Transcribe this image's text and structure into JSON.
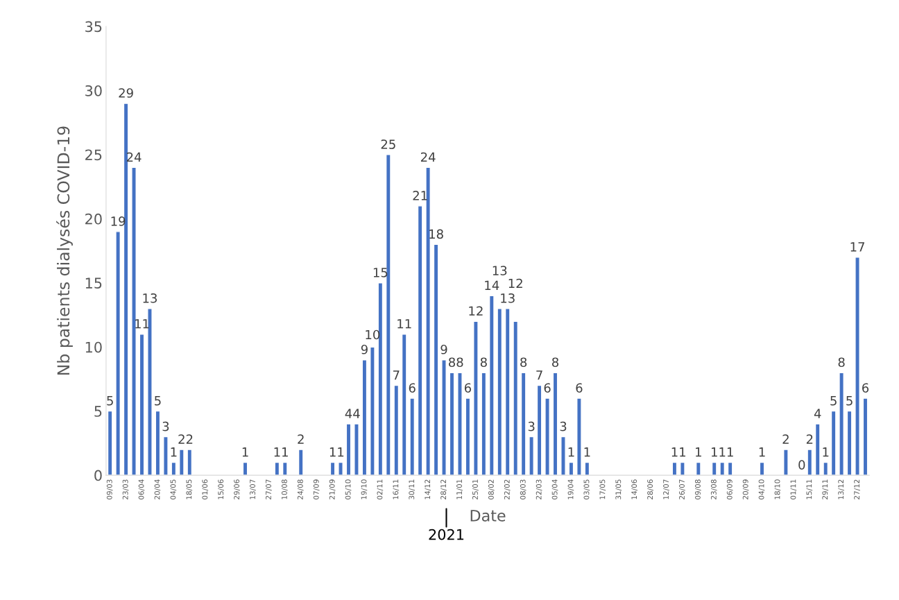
{
  "chart_data": {
    "type": "bar",
    "xlabel": "Date",
    "ylabel": "Nb patients dialysés COVID-19",
    "categories": [
      "09/03",
      null,
      "23/03",
      null,
      "06/04",
      null,
      "20/04",
      null,
      "04/05",
      null,
      "18/05",
      null,
      "01/06",
      null,
      "15/06",
      null,
      "29/06",
      null,
      "13/07",
      null,
      "27/07",
      null,
      "10/08",
      null,
      "24/08",
      null,
      "07/09",
      null,
      "21/09",
      null,
      "05/10",
      null,
      "19/10",
      null,
      "02/11",
      null,
      "16/11",
      null,
      "30/11",
      null,
      "14/12",
      null,
      "28/12",
      null,
      "11/01",
      null,
      "25/01",
      null,
      "08/02",
      null,
      "22/02",
      null,
      "08/03",
      null,
      "22/03",
      null,
      "05/04",
      null,
      "19/04",
      null,
      "03/05",
      null,
      "17/05",
      null,
      "31/05",
      null,
      "14/06",
      null,
      "28/06",
      null,
      "12/07",
      null,
      "26/07",
      null,
      "09/08",
      null,
      "23/08",
      null,
      "06/09",
      null,
      "20/09",
      null,
      "04/10",
      null,
      "18/10",
      null,
      "01/11",
      null,
      "15/11",
      null,
      "29/11",
      null,
      "13/12",
      null,
      "27/12",
      null
    ],
    "values": [
      5,
      19,
      29,
      24,
      11,
      13,
      5,
      3,
      1,
      2,
      2,
      0,
      0,
      0,
      0,
      0,
      0,
      1,
      0,
      0,
      0,
      1,
      1,
      0,
      2,
      0,
      0,
      0,
      1,
      1,
      4,
      4,
      9,
      10,
      15,
      25,
      7,
      11,
      6,
      21,
      24,
      18,
      9,
      8,
      8,
      6,
      12,
      8,
      14,
      13,
      13,
      12,
      8,
      3,
      7,
      6,
      8,
      3,
      1,
      6,
      1,
      0,
      0,
      0,
      0,
      0,
      0,
      0,
      0,
      0,
      0,
      1,
      1,
      0,
      1,
      0,
      1,
      1,
      1,
      0,
      0,
      0,
      1,
      0,
      0,
      2,
      0,
      0,
      2,
      4,
      1,
      5,
      8,
      5,
      17,
      6
    ],
    "value_labels": [
      "5",
      "19",
      "29",
      "24",
      "11",
      "13",
      "5",
      "3",
      "1",
      "2",
      "2",
      null,
      null,
      null,
      null,
      null,
      null,
      "1",
      null,
      null,
      null,
      "1",
      "1",
      null,
      "2",
      null,
      null,
      null,
      "1",
      "1",
      "4",
      "4",
      "9",
      "10",
      "15",
      "25",
      "7",
      "11",
      "6",
      "21",
      "24",
      "18",
      "9",
      "8",
      "8",
      "6",
      "12",
      "8",
      "14",
      "13",
      "13",
      "12",
      "8",
      "3",
      "7",
      "6",
      "8",
      "3",
      "1",
      "6",
      "1",
      null,
      null,
      null,
      null,
      null,
      null,
      null,
      null,
      null,
      null,
      "1",
      "1",
      null,
      "1",
      null,
      "1",
      "1",
      "1",
      null,
      null,
      null,
      "1",
      null,
      null,
      "2",
      null,
      "0",
      "2",
      "4",
      "1",
      "5",
      "8",
      "5",
      "17",
      "6"
    ],
    "color": "#4472c4",
    "ylim": [
      0,
      35
    ],
    "yticks": [
      0,
      5,
      10,
      15,
      20,
      25,
      30,
      35
    ],
    "grid": false,
    "annotations": [
      "2021"
    ]
  }
}
